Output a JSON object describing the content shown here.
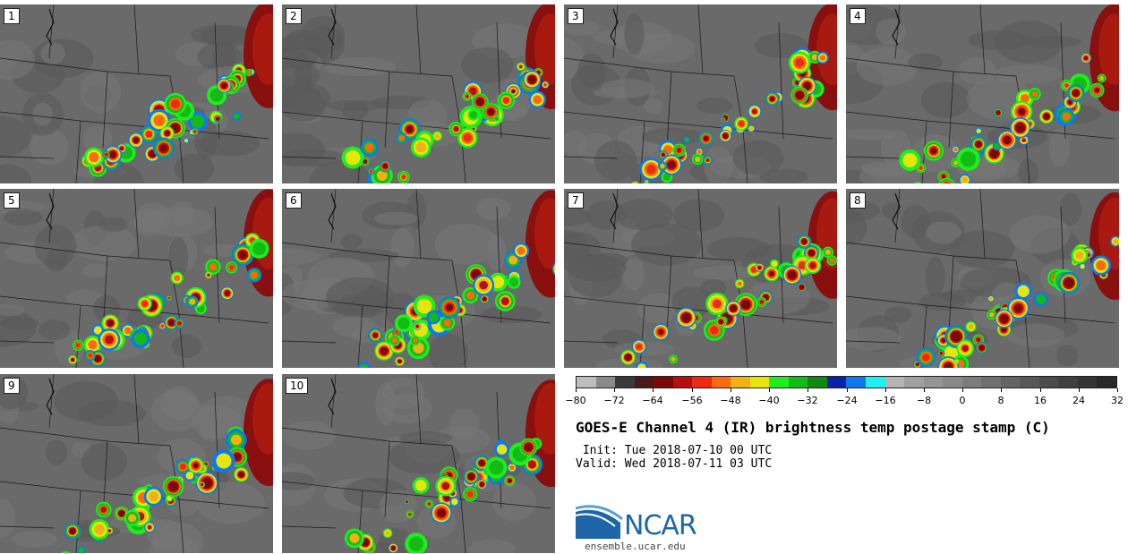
{
  "panels": [
    {
      "label": "1"
    },
    {
      "label": "2"
    },
    {
      "label": "3"
    },
    {
      "label": "4"
    },
    {
      "label": "5"
    },
    {
      "label": "6"
    },
    {
      "label": "7"
    },
    {
      "label": "8"
    },
    {
      "label": "9"
    },
    {
      "label": "10"
    }
  ],
  "colorbar": {
    "ticks": [
      "−80",
      "−72",
      "−64",
      "−56",
      "−48",
      "−40",
      "−32",
      "−24",
      "−16",
      "−8",
      "0",
      "8",
      "16",
      "24",
      "32"
    ],
    "colors": [
      "#bdbdbd",
      "#8a8a8a",
      "#3a3a3a",
      "#4a1a1a",
      "#7a0a0a",
      "#b50f0f",
      "#ee2a10",
      "#fb6a10",
      "#f3b015",
      "#e6e60c",
      "#1eee1e",
      "#14bb14",
      "#0f8a0f",
      "#0a22a8",
      "#0f78f0",
      "#1ef0f0",
      "#b4b4b4",
      "#a0a0a0",
      "#949494",
      "#888888",
      "#7c7c7c",
      "#707070",
      "#646464",
      "#585858",
      "#4c4c4c",
      "#404040",
      "#343434",
      "#282828"
    ]
  },
  "title": "GOES-E Channel 4 (IR) brightness temp postage stamp (C)",
  "init": " Init: Tue 2018-07-10 00 UTC",
  "valid": "Valid: Wed 2018-07-11 03 UTC",
  "logo": {
    "text": "NCAR",
    "site": "ensemble.ucar.edu"
  }
}
